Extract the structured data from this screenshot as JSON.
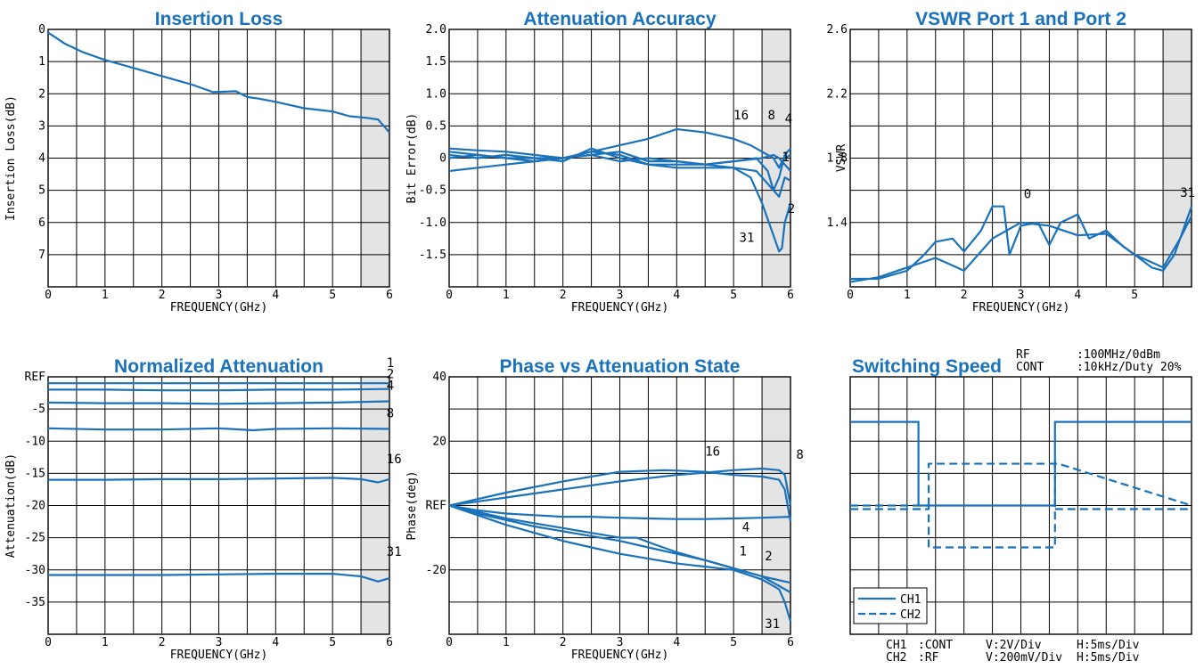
{
  "colors": {
    "curve": "#1a72bb",
    "title": "#1a72bb",
    "grid": "#000000",
    "shade": "#e4e4e4"
  },
  "chart_data": [
    {
      "type": "line",
      "title": "Insertion Loss",
      "xlabel": "FREQUENCY(GHz)",
      "ylabel": "Insertion Loss(dB)",
      "xlim": [
        0,
        6
      ],
      "ylim": [
        0,
        8
      ],
      "y_inverted": true,
      "x_ticks": [
        "0",
        "1",
        "2",
        "3",
        "4",
        "5",
        "6"
      ],
      "y_ticks": [
        {
          "v": 0,
          "t": "0"
        },
        {
          "v": 1,
          "t": "1"
        },
        {
          "v": 2,
          "t": "2"
        },
        {
          "v": 3,
          "t": "3"
        },
        {
          "v": 4,
          "t": "4"
        },
        {
          "v": 5,
          "t": "5"
        },
        {
          "v": 6,
          "t": "6"
        },
        {
          "v": 7,
          "t": "7"
        }
      ],
      "shaded_region": [
        5.5,
        6
      ],
      "series": [
        {
          "x": [
            0,
            0.3,
            0.6,
            1,
            1.5,
            2,
            2.5,
            2.9,
            3.3,
            3.5,
            3.7,
            4,
            4.5,
            5,
            5.3,
            5.6,
            5.8,
            6
          ],
          "y": [
            0.1,
            0.45,
            0.7,
            0.95,
            1.2,
            1.45,
            1.7,
            1.95,
            1.92,
            2.1,
            2.15,
            2.25,
            2.45,
            2.55,
            2.7,
            2.75,
            2.8,
            3.2
          ]
        }
      ],
      "annotations": []
    },
    {
      "type": "line",
      "title": "Attenuation Accuracy",
      "xlabel": "FREQUENCY(GHz)",
      "ylabel": "Bit Error(dB)",
      "xlim": [
        0,
        6
      ],
      "ylim": [
        -2,
        2
      ],
      "x_ticks": [
        "0",
        "1",
        "2",
        "3",
        "4",
        "5",
        "6"
      ],
      "y_ticks": [
        {
          "v": 2,
          "t": "2.0"
        },
        {
          "v": 1.5,
          "t": "1.5"
        },
        {
          "v": 1,
          "t": "1.0"
        },
        {
          "v": 0.5,
          "t": "0.5"
        },
        {
          "v": 0,
          "t": "0"
        },
        {
          "v": -0.5,
          "t": "-0.5"
        },
        {
          "v": -1,
          "t": "-1.0"
        },
        {
          "v": -1.5,
          "t": "-1.5"
        }
      ],
      "shaded_region": [
        5.5,
        6
      ],
      "series": [
        {
          "x": [
            0,
            0.5,
            1,
            1.5,
            2,
            2.5,
            3,
            3.5,
            4,
            4.5,
            5,
            5.3,
            5.5,
            5.7,
            5.8,
            5.85,
            5.9,
            6
          ],
          "y": [
            -0.2,
            -0.15,
            -0.1,
            -0.05,
            0.0,
            0.1,
            0.2,
            0.3,
            0.45,
            0.4,
            0.3,
            0.2,
            0.1,
            0.0,
            -0.15,
            -0.05,
            0.0,
            0.05
          ]
        },
        {
          "x": [
            0,
            0.5,
            1,
            1.5,
            2,
            2.5,
            3,
            3.5,
            4,
            4.5,
            5,
            5.4,
            5.6,
            5.7,
            5.8,
            5.9,
            6
          ],
          "y": [
            0.15,
            0.12,
            0.1,
            0.05,
            0.0,
            0.05,
            -0.05,
            0.0,
            -0.05,
            -0.1,
            -0.05,
            0.0,
            -0.2,
            -0.5,
            -0.3,
            0.05,
            0.15
          ]
        },
        {
          "x": [
            0,
            0.5,
            1,
            1.5,
            2,
            2.5,
            3,
            3.5,
            4,
            4.5,
            5,
            5.5,
            5.7,
            5.8,
            5.9,
            6
          ],
          "y": [
            0.1,
            0.05,
            0.0,
            -0.05,
            0.0,
            0.1,
            0.05,
            -0.1,
            -0.1,
            -0.1,
            -0.05,
            0.0,
            0.05,
            0.0,
            -0.1,
            -0.2
          ]
        },
        {
          "x": [
            0,
            0.5,
            1,
            1.5,
            2,
            2.5,
            3,
            3.5,
            4,
            4.5,
            5,
            5.4,
            5.6,
            5.8,
            5.9,
            6
          ],
          "y": [
            0.05,
            0.0,
            0.05,
            0.0,
            -0.05,
            0.15,
            0.0,
            -0.1,
            -0.15,
            -0.15,
            -0.15,
            -0.2,
            -0.4,
            -0.6,
            -0.3,
            -0.35
          ]
        },
        {
          "x": [
            0,
            0.5,
            1,
            1.5,
            2,
            2.5,
            3,
            3.5,
            4,
            4.5,
            5,
            5.3,
            5.5,
            5.7,
            5.8,
            5.85,
            5.9,
            6
          ],
          "y": [
            0.0,
            0.05,
            0.0,
            0.0,
            0.0,
            0.05,
            0.1,
            -0.05,
            -0.05,
            -0.1,
            -0.15,
            -0.3,
            -0.7,
            -1.2,
            -1.45,
            -1.4,
            -1.0,
            -0.7
          ]
        }
      ],
      "annotations": [
        {
          "text": "16",
          "x": 5.0,
          "y": 0.6
        },
        {
          "text": "8",
          "x": 5.6,
          "y": 0.6
        },
        {
          "text": "4",
          "x": 5.9,
          "y": 0.55
        },
        {
          "text": "1",
          "x": 5.85,
          "y": -0.05
        },
        {
          "text": "2",
          "x": 5.95,
          "y": -0.85
        },
        {
          "text": "31",
          "x": 5.1,
          "y": -1.3
        }
      ]
    },
    {
      "type": "line",
      "title": "VSWR Port 1 and Port 2",
      "xlabel": "FREQUENCY(GHz)",
      "ylabel": "VSWR",
      "xlim": [
        0,
        6
      ],
      "ylim": [
        1.0,
        2.6
      ],
      "x_ticks": [
        "0",
        "1",
        "2",
        "3",
        "4",
        "5"
      ],
      "y_ticks": [
        {
          "v": 2.6,
          "t": "2.6"
        },
        {
          "v": 2.2,
          "t": "2.2"
        },
        {
          "v": 1.8,
          "t": "1.8"
        },
        {
          "v": 1.4,
          "t": "1.4"
        }
      ],
      "shaded_region": [
        5.5,
        6
      ],
      "series": [
        {
          "x": [
            0,
            0.5,
            1,
            1.3,
            1.5,
            1.8,
            2,
            2.3,
            2.5,
            2.7,
            2.8,
            3,
            3.3,
            3.5,
            3.7,
            4,
            4.2,
            4.5,
            4.8,
            5,
            5.3,
            5.5,
            5.7,
            6
          ],
          "y": [
            1.05,
            1.05,
            1.1,
            1.2,
            1.28,
            1.3,
            1.22,
            1.35,
            1.5,
            1.5,
            1.2,
            1.38,
            1.4,
            1.26,
            1.4,
            1.45,
            1.3,
            1.35,
            1.25,
            1.2,
            1.12,
            1.1,
            1.2,
            1.5
          ]
        },
        {
          "x": [
            0,
            0.5,
            1,
            1.5,
            2,
            2.5,
            3,
            3.5,
            4,
            4.5,
            5,
            5.5,
            5.8,
            6
          ],
          "y": [
            1.03,
            1.06,
            1.12,
            1.18,
            1.1,
            1.3,
            1.4,
            1.38,
            1.32,
            1.33,
            1.2,
            1.12,
            1.3,
            1.44
          ]
        }
      ],
      "annotations": [
        {
          "text": "0",
          "x": 3.05,
          "y": 1.55
        },
        {
          "text": "31",
          "x": 5.8,
          "y": 1.56
        }
      ]
    },
    {
      "type": "line",
      "title": "Normalized Attenuation",
      "xlabel": "FREQUENCY(GHz)",
      "ylabel": "Attenuation(dB)",
      "xlim": [
        0,
        6
      ],
      "ylim": [
        -40,
        0
      ],
      "x_ticks": [
        "0",
        "1",
        "2",
        "3",
        "4",
        "5",
        "6"
      ],
      "y_ticks": [
        {
          "v": 0,
          "t": "REF"
        },
        {
          "v": -5,
          "t": "-5"
        },
        {
          "v": -10,
          "t": "-10"
        },
        {
          "v": -15,
          "t": "-15"
        },
        {
          "v": -20,
          "t": "-20"
        },
        {
          "v": -25,
          "t": "-25"
        },
        {
          "v": -30,
          "t": "-30"
        },
        {
          "v": -35,
          "t": "-35"
        }
      ],
      "shaded_region": [
        5.5,
        6
      ],
      "series": [
        {
          "x": [
            0,
            1,
            2,
            3,
            4,
            5,
            6
          ],
          "y": [
            -1.0,
            -1.0,
            -1.0,
            -1.0,
            -1.0,
            -1.0,
            -1.0
          ]
        },
        {
          "x": [
            0,
            1,
            2,
            3,
            4,
            5,
            6
          ],
          "y": [
            -2.0,
            -2.0,
            -2.1,
            -2.1,
            -2.0,
            -2.0,
            -1.9
          ]
        },
        {
          "x": [
            0,
            1,
            2,
            3,
            4,
            5,
            6
          ],
          "y": [
            -4.0,
            -4.1,
            -4.1,
            -4.2,
            -4.1,
            -4.0,
            -3.8
          ]
        },
        {
          "x": [
            0,
            1,
            2,
            3,
            3.6,
            4,
            5,
            6
          ],
          "y": [
            -8.0,
            -8.2,
            -8.2,
            -8.0,
            -8.3,
            -8.1,
            -8.0,
            -8.1
          ]
        },
        {
          "x": [
            0,
            1,
            2,
            3,
            4,
            5,
            5.5,
            5.8,
            6
          ],
          "y": [
            -16.0,
            -16.0,
            -15.9,
            -15.9,
            -15.8,
            -15.7,
            -15.9,
            -16.4,
            -15.9
          ]
        },
        {
          "x": [
            0,
            1,
            2,
            3,
            4,
            5,
            5.5,
            5.8,
            6
          ],
          "y": [
            -30.8,
            -30.8,
            -30.8,
            -30.7,
            -30.6,
            -30.6,
            -31.0,
            -31.8,
            -31.3
          ]
        }
      ],
      "annotations": [
        {
          "text": "1",
          "x": 5.95,
          "y": 1.5
        },
        {
          "text": "2",
          "x": 5.95,
          "y": -0.2
        },
        {
          "text": "4",
          "x": 5.95,
          "y": -2.0
        },
        {
          "text": "8",
          "x": 5.95,
          "y": -6.3
        },
        {
          "text": "16",
          "x": 5.95,
          "y": -13.4
        },
        {
          "text": "31",
          "x": 5.95,
          "y": -27.8
        }
      ]
    },
    {
      "type": "line",
      "title": "Phase vs Attenuation State",
      "xlabel": "FREQUENCY(GHz)",
      "ylabel": "Phase(deg)",
      "xlim": [
        0,
        6
      ],
      "ylim": [
        -40,
        40
      ],
      "x_ticks": [
        "0",
        "1",
        "2",
        "3",
        "4",
        "5",
        "6"
      ],
      "y_ticks": [
        {
          "v": 40,
          "t": "40"
        },
        {
          "v": 20,
          "t": "20"
        },
        {
          "v": 0,
          "t": "REF"
        },
        {
          "v": -20,
          "t": "-20"
        }
      ],
      "shaded_region": [
        5.5,
        6
      ],
      "series": [
        {
          "x": [
            0,
            1,
            2,
            3,
            4,
            5,
            5.5,
            5.8,
            5.9,
            6
          ],
          "y": [
            0,
            2.5,
            5.0,
            7.5,
            9.5,
            11.0,
            11.5,
            11.0,
            9.5,
            0
          ]
        },
        {
          "x": [
            0,
            1,
            2,
            3,
            3.8,
            4.5,
            5,
            5.5,
            5.8,
            5.9,
            6
          ],
          "y": [
            0,
            4.0,
            7.5,
            10.5,
            11.0,
            10.5,
            9.5,
            9.0,
            8.0,
            5.0,
            -5.0
          ]
        },
        {
          "x": [
            0,
            0.5,
            1,
            1.5,
            2,
            2.5,
            3,
            3.5,
            4,
            4.5,
            5,
            5.5,
            6
          ],
          "y": [
            0,
            -1.5,
            -2.5,
            -3.0,
            -3.5,
            -3.5,
            -3.8,
            -4.0,
            -4.2,
            -4.2,
            -4.0,
            -3.8,
            -3.5
          ]
        },
        {
          "x": [
            0,
            0.5,
            1,
            1.5,
            2,
            2.5,
            3,
            3.5,
            4,
            4.5,
            5,
            5.5,
            6
          ],
          "y": [
            0,
            -2.5,
            -4.5,
            -6.5,
            -8.0,
            -9.5,
            -11.0,
            -13.0,
            -15.0,
            -17.0,
            -19.5,
            -22.0,
            -24.0
          ]
        },
        {
          "x": [
            0,
            0.5,
            1,
            1.5,
            2,
            2.5,
            3,
            3.3,
            3.6,
            4,
            4.5,
            5,
            5.5,
            6
          ],
          "y": [
            0,
            -2.0,
            -4.0,
            -5.5,
            -7.0,
            -8.5,
            -10.0,
            -10.0,
            -12.0,
            -14.5,
            -17.0,
            -19.5,
            -22.0,
            -27.0
          ]
        },
        {
          "x": [
            0,
            0.5,
            1,
            1.5,
            2,
            2.5,
            3,
            3.5,
            4,
            4.5,
            5,
            5.5,
            5.8,
            5.9,
            6
          ],
          "y": [
            0,
            -3.0,
            -6.0,
            -8.5,
            -11.0,
            -13.0,
            -15.0,
            -16.5,
            -18.0,
            -19.0,
            -20.0,
            -23.0,
            -26.0,
            -30.0,
            -36.0
          ]
        }
      ],
      "annotations": [
        {
          "text": "16",
          "x": 4.5,
          "y": 15.5
        },
        {
          "text": "8",
          "x": 6.1,
          "y": 14.5
        },
        {
          "text": "4",
          "x": 5.15,
          "y": -8.0
        },
        {
          "text": "1",
          "x": 5.1,
          "y": -15.5
        },
        {
          "text": "2",
          "x": 5.55,
          "y": -17.0
        },
        {
          "text": "31",
          "x": 5.55,
          "y": -38.0
        }
      ]
    },
    {
      "type": "line",
      "title": "Switching Speed",
      "conditions": [
        {
          "label": "RF",
          "value": ":100MHz/0dBm"
        },
        {
          "label": "CONT",
          "value": ":10kHz/Duty 20%"
        }
      ],
      "legend": [
        "CH1",
        "CH2"
      ],
      "legend_position": "bottom-left",
      "footer": [
        {
          "ch": "CH1",
          "sig": ":CONT",
          "v": "V:2V/Div",
          "h": "H:5ms/Div"
        },
        {
          "ch": "CH2",
          "sig": ":RF",
          "v": "V:200mV/Div",
          "h": "H:5ms/Div"
        }
      ],
      "xlim": [
        0,
        50
      ],
      "ylim": [
        -4,
        4
      ],
      "series": [
        {
          "name": "CH1",
          "x": [
            0,
            10,
            10,
            30,
            30,
            50
          ],
          "y": [
            2.6,
            2.6,
            0,
            0,
            2.6,
            2.6
          ]
        },
        {
          "name": "CH2",
          "x": [
            0,
            11.5,
            11.5,
            12.5,
            29,
            30,
            30,
            30.5,
            50
          ],
          "y": [
            0,
            0,
            -1.3,
            -1.3,
            -1.3,
            -1.3,
            1.3,
            1.3,
            0
          ],
          "envelope": [
            -1.3,
            1.3
          ]
        }
      ]
    }
  ]
}
